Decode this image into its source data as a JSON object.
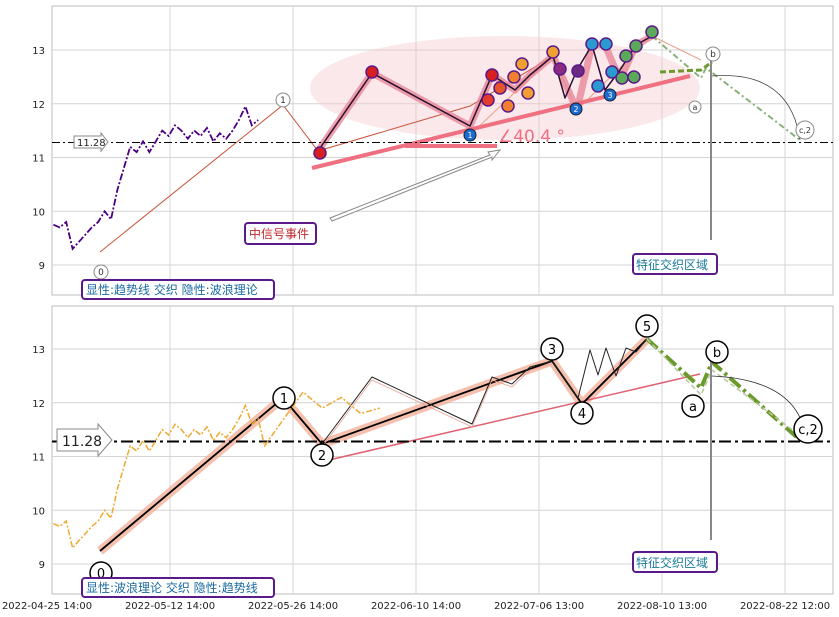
{
  "chart_data": [
    {
      "type": "line",
      "panel": "top",
      "ylim": [
        8.5,
        14.0
      ],
      "yticks": [
        9,
        10,
        11,
        12,
        13
      ],
      "grid": true,
      "reference_line": {
        "value": 11.28,
        "label": "11.28"
      },
      "wave_labels": [
        "0",
        "1",
        "a",
        "b",
        "c,2"
      ],
      "small_markers": [
        "1",
        "2",
        "3"
      ],
      "angle_annotation": "∠40.4 °",
      "event_label": "中信号事件",
      "zone_label": "特征交织区域",
      "legend_label": "显性:趋势线 交织 隐性:波浪理论",
      "colors": {
        "price": "#4b0082",
        "trend": "#f07080",
        "wave": "#e9a8a0",
        "zone": "#4b1a8a"
      },
      "price_series": [
        [
          "2022-04-26",
          9.75
        ],
        [
          "2022-04-27",
          9.7
        ],
        [
          "2022-04-28",
          9.8
        ],
        [
          "2022-04-29",
          9.3
        ],
        [
          "2022-05-02",
          9.7
        ],
        [
          "2022-05-03",
          9.8
        ],
        [
          "2022-05-04",
          10.0
        ],
        [
          "2022-05-05",
          9.85
        ],
        [
          "2022-05-06",
          10.4
        ],
        [
          "2022-05-07",
          10.8
        ],
        [
          "2022-05-08",
          11.2
        ],
        [
          "2022-05-09",
          11.1
        ],
        [
          "2022-05-10",
          11.3
        ],
        [
          "2022-05-11",
          11.1
        ],
        [
          "2022-05-12",
          11.3
        ],
        [
          "2022-05-13",
          11.5
        ],
        [
          "2022-05-14",
          11.4
        ],
        [
          "2022-05-15",
          11.6
        ],
        [
          "2022-05-16",
          11.5
        ],
        [
          "2022-05-17",
          11.35
        ],
        [
          "2022-05-18",
          11.5
        ],
        [
          "2022-05-19",
          11.4
        ],
        [
          "2022-05-20",
          11.55
        ],
        [
          "2022-05-21",
          11.3
        ],
        [
          "2022-05-22",
          11.45
        ],
        [
          "2022-05-23",
          11.35
        ],
        [
          "2022-05-24",
          11.5
        ],
        [
          "2022-05-25",
          11.7
        ],
        [
          "2022-05-26",
          11.95
        ],
        [
          "2022-05-27",
          11.6
        ],
        [
          "2022-05-28",
          11.7
        ]
      ]
    },
    {
      "type": "line",
      "panel": "bottom",
      "ylim": [
        8.5,
        14.0
      ],
      "yticks": [
        9,
        10,
        11,
        12,
        13
      ],
      "grid": true,
      "reference_line": {
        "value": 11.28,
        "label": "11.28"
      },
      "wave_points": [
        {
          "label": "0",
          "date": "2022-04-28",
          "value": 9.2
        },
        {
          "label": "1",
          "date": "2022-05-25",
          "value": 11.95
        },
        {
          "label": "2",
          "date": "2022-05-29",
          "value": 11.2
        },
        {
          "label": "3",
          "date": "2022-07-18",
          "value": 12.85
        },
        {
          "label": "4",
          "date": "2022-07-21",
          "value": 12.0
        },
        {
          "label": "5",
          "date": "2022-08-08",
          "value": 13.2
        },
        {
          "label": "a",
          "date": "2022-08-13",
          "value": 12.2
        },
        {
          "label": "b",
          "date": "2022-08-14",
          "value": 12.75
        },
        {
          "label": "c,2",
          "date": "2022-08-25",
          "value": 11.3
        }
      ],
      "zone_label": "特征交织区域",
      "legend_label": "显性:波浪理论 交织 隐性:趋势线",
      "colors": {
        "price": "#f0a830",
        "wave": "#000000",
        "wave_band": "#f3b09a",
        "trend": "#e06070",
        "correction": "#6b9a2c"
      }
    }
  ],
  "x_axis": {
    "ticks": [
      "2022-04-25 14:00",
      "2022-05-12 14:00",
      "2022-05-26 14:00",
      "2022-06-10 14:00",
      "2022-07-06 13:00",
      "2022-08-10 13:00",
      "2022-08-22 12:00"
    ]
  }
}
